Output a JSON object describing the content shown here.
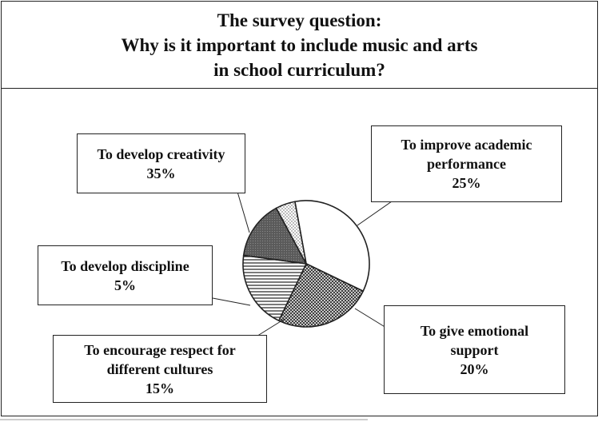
{
  "chart_data": {
    "type": "pie",
    "title": [
      "The survey question:",
      "Why is it important to include music and arts",
      "in school curriculum?"
    ],
    "slices": [
      {
        "label": [
          "To develop creativity"
        ],
        "value": 35,
        "value_label": "35%",
        "fill": "plain-white"
      },
      {
        "label": [
          "To improve academic",
          "performance"
        ],
        "value": 25,
        "value_label": "25%",
        "fill": "cross-hatch"
      },
      {
        "label": [
          "To give emotional",
          "support"
        ],
        "value": 20,
        "value_label": "20%",
        "fill": "horizontal-lines"
      },
      {
        "label": [
          "To encourage respect for",
          "different cultures"
        ],
        "value": 15,
        "value_label": "15%",
        "fill": "dark-grey"
      },
      {
        "label": [
          "To develop discipline"
        ],
        "value": 5,
        "value_label": "5%",
        "fill": "light-dots"
      }
    ],
    "legend": "callout-boxes"
  },
  "colors": {
    "line": "#222222",
    "background": "#ffffff",
    "dark_slice": "#555555"
  }
}
